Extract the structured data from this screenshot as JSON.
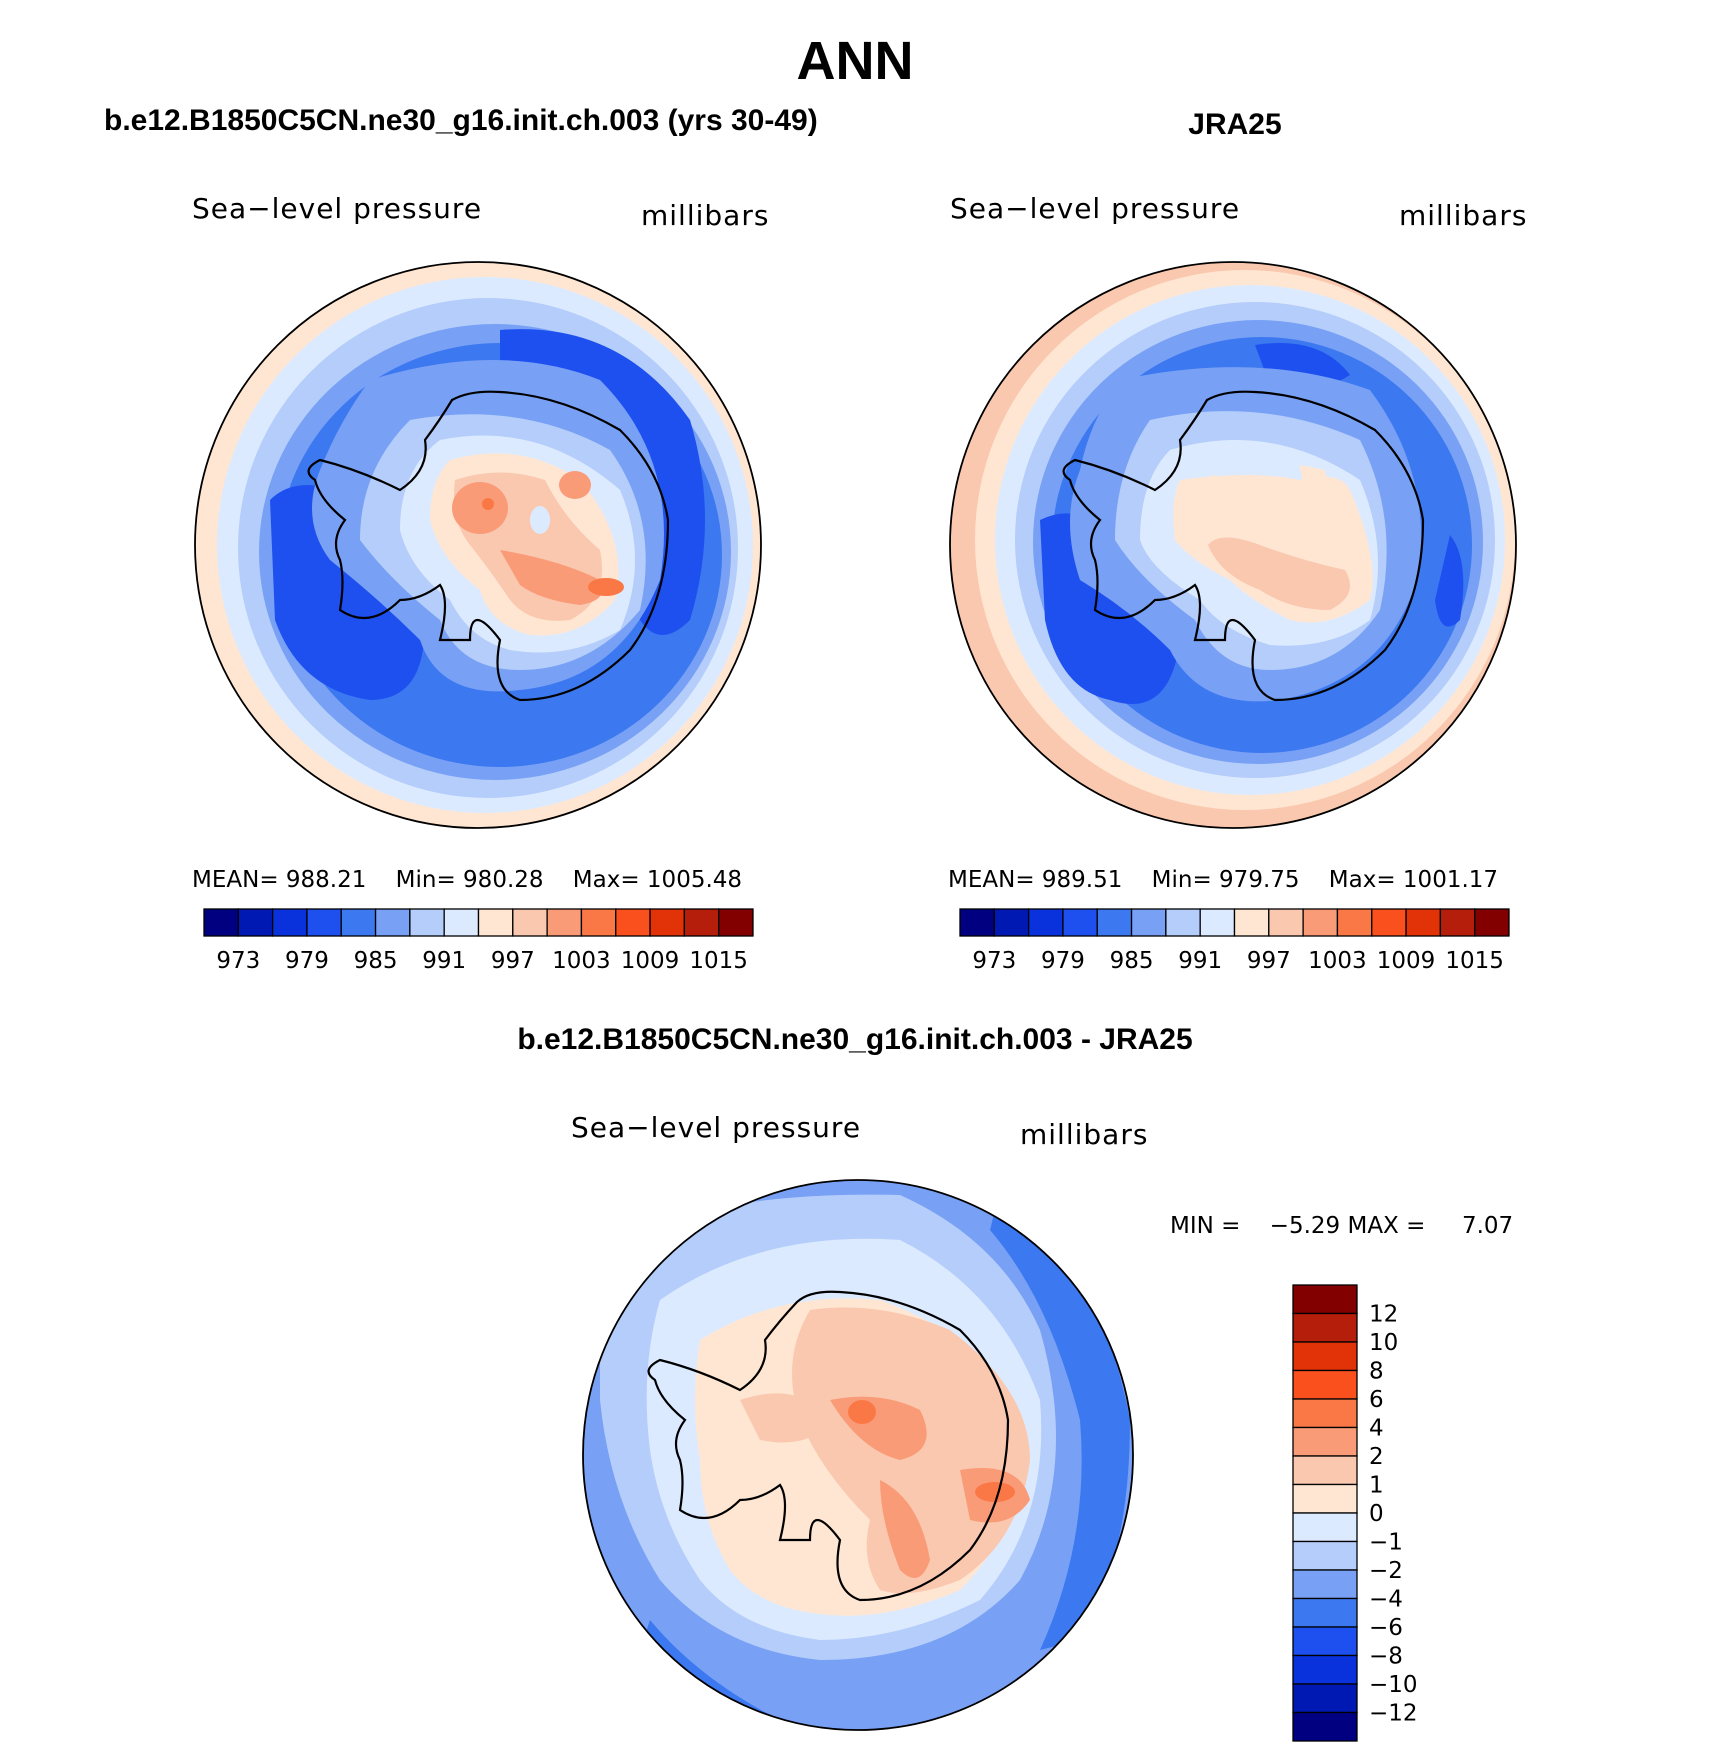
{
  "main_title": "ANN",
  "panels": [
    {
      "title": "b.e12.B1850C5CN.ne30_g16.init.ch.003 (yrs 30-49)",
      "variable": "Sea−level pressure",
      "units": "millibars",
      "stats": {
        "mean_label": "MEAN=",
        "mean": "988.21",
        "min_label": "Min=",
        "min": "980.28",
        "max_label": "Max=",
        "max": "1005.48"
      },
      "colorbar_labels": [
        "973",
        "979",
        "985",
        "991",
        "997",
        "1003",
        "1009",
        "1015"
      ]
    },
    {
      "title": "JRA25",
      "variable": "Sea−level pressure",
      "units": "millibars",
      "stats": {
        "mean_label": "MEAN=",
        "mean": "989.51",
        "min_label": "Min=",
        "min": "979.75",
        "max_label": "Max=",
        "max": "1001.17"
      },
      "colorbar_labels": [
        "973",
        "979",
        "985",
        "991",
        "997",
        "1003",
        "1009",
        "1015"
      ]
    },
    {
      "title": "b.e12.B1850C5CN.ne30_g16.init.ch.003 - JRA25",
      "variable": "Sea−level pressure",
      "units": "millibars",
      "stats": {
        "min_label": "MIN =",
        "min": "−5.29",
        "max_label": "MAX =",
        "max": "7.07"
      },
      "colorbar_labels": [
        "12",
        "10",
        "8",
        "6",
        "4",
        "2",
        "1",
        "0",
        "−1",
        "−2",
        "−4",
        "−6",
        "−8",
        "−10",
        "−12"
      ]
    }
  ],
  "colors": {
    "abs_scale": [
      "#000080",
      "#0019b3",
      "#0a32dc",
      "#1e50f0",
      "#3c78f0",
      "#78a0f5",
      "#b4cdfa",
      "#dceaff",
      "#ffe6d2",
      "#fac8af",
      "#fa9b78",
      "#fa7846",
      "#fa501e",
      "#e13208",
      "#b41e0a",
      "#820000"
    ],
    "diff_scale_top_to_bottom": [
      "#820000",
      "#b41e0a",
      "#e13208",
      "#fa501e",
      "#fa7846",
      "#fa9b78",
      "#fac8af",
      "#ffe6d2",
      "#dceaff",
      "#b4cdfa",
      "#78a0f5",
      "#3c78f0",
      "#1e50f0",
      "#0a32dc",
      "#0019b3",
      "#000080"
    ]
  }
}
